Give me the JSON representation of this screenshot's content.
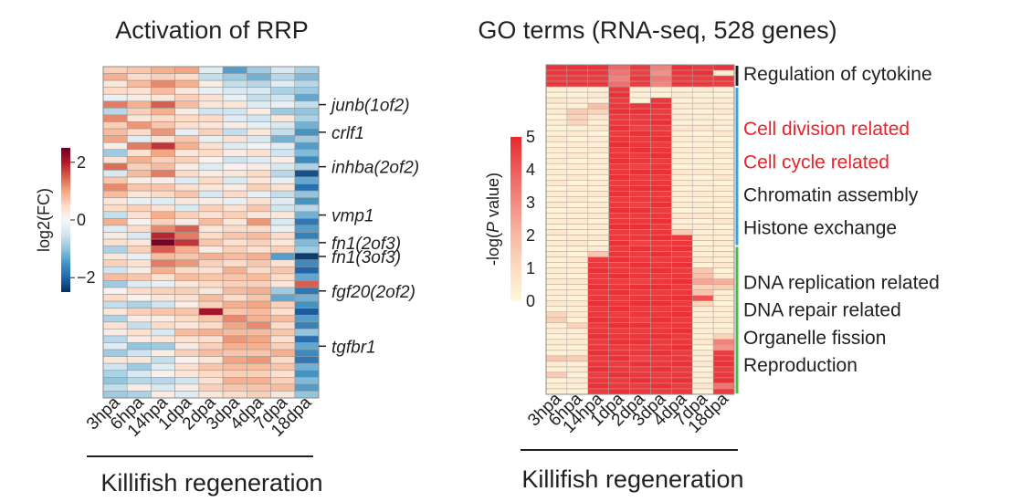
{
  "chart_data": [
    {
      "type": "heatmap",
      "title": "Activation of RRP",
      "xlabel": "Killifish regeneration",
      "columns": [
        "3hpa",
        "6hpa",
        "14hpa",
        "1dpa",
        "2dpa",
        "3dpa",
        "4dpa",
        "7dpa",
        "18dpa"
      ],
      "row_count": 48,
      "gene_labels": [
        {
          "label": "junb(1of2)",
          "row": 5
        },
        {
          "label": "crlf1",
          "row": 9
        },
        {
          "label": "inhba(2of2)",
          "row": 14
        },
        {
          "label": "vmp1",
          "row": 21
        },
        {
          "label": "fn1(2of3)",
          "row": 25
        },
        {
          "label": "fn1(3of3)",
          "row": 27
        },
        {
          "label": "fgf20(2of2)",
          "row": 32
        },
        {
          "label": "tgfbr1",
          "row": 40
        }
      ],
      "colorbar": {
        "label": "log2(FC)",
        "ticks": [
          "2",
          "0",
          "−2"
        ],
        "range": [
          -2.5,
          2.5
        ],
        "colors": [
          "#053061",
          "#2166ac",
          "#4393c3",
          "#92c5de",
          "#d1e5f0",
          "#f7f7f7",
          "#fddbc7",
          "#f4a582",
          "#d6604d",
          "#b2182b",
          "#67001f"
        ]
      },
      "column_profiles": {
        "3hpa": [
          0.6,
          0.9,
          0.3,
          0.5,
          -0.2,
          1.3,
          -0.7,
          1.2,
          0.6,
          0.8,
          1.0,
          0.2,
          -0.9,
          0.4,
          1.4,
          -0.4,
          0.7,
          1.2,
          0.8,
          0.3,
          0.5,
          -0.6,
          0.9,
          -0.3,
          0.2,
          0.4,
          -0.8,
          0.3,
          0.6,
          -0.5,
          0.8,
          -0.9,
          0.1,
          0.5,
          -0.6,
          0.3,
          -0.8,
          0.4,
          0.2,
          -0.7,
          -0.3,
          -0.9,
          0.3,
          -0.5,
          -0.8,
          -1.0,
          -0.6,
          -0.9
        ],
        "6hpa": [
          0.7,
          0.5,
          0.8,
          0.4,
          0.2,
          0.9,
          0.6,
          0.3,
          1.1,
          0.5,
          -0.3,
          1.3,
          0.4,
          0.9,
          0.6,
          0.8,
          0.2,
          0.7,
          0.3,
          -0.2,
          0.6,
          0.4,
          0.1,
          0.5,
          -0.4,
          0.3,
          0.6,
          -0.2,
          0.4,
          0.2,
          0.7,
          -0.3,
          0.5,
          0.1,
          -0.8,
          0.6,
          0.2,
          -0.6,
          0.4,
          0.2,
          -1.0,
          -0.5,
          0.3,
          -0.9,
          -0.4,
          -0.7,
          0.2,
          -0.8
        ],
        "14hpa": [
          0.9,
          0.6,
          1.2,
          0.8,
          0.3,
          1.5,
          0.9,
          0.5,
          0.7,
          1.1,
          0.4,
          1.8,
          1.0,
          0.6,
          0.8,
          1.3,
          0.2,
          0.7,
          0.5,
          -0.3,
          0.4,
          0.9,
          0.6,
          1.2,
          1.9,
          2.4,
          1.5,
          0.8,
          1.3,
          0.9,
          0.4,
          -0.2,
          0.6,
          0.3,
          -0.5,
          0.7,
          0.2,
          0.5,
          -0.4,
          0.3,
          -0.9,
          0.2,
          -0.6,
          -0.3,
          0.1,
          -0.7,
          -0.4,
          0.2
        ],
        "1dpa": [
          1.0,
          0.5,
          0.9,
          0.3,
          0.6,
          0.8,
          0.2,
          0.5,
          0.4,
          -0.2,
          0.7,
          0.9,
          0.3,
          0.6,
          0.2,
          0.5,
          -0.3,
          0.4,
          0.7,
          0.3,
          -0.4,
          0.6,
          0.2,
          1.5,
          1.3,
          1.8,
          0.9,
          0.7,
          1.1,
          0.5,
          0.8,
          0.3,
          0.6,
          0.4,
          0.2,
          0.7,
          0.5,
          0.3,
          0.8,
          0.4,
          0.2,
          0.6,
          0.1,
          0.4,
          0.3,
          -0.5,
          0.2,
          -0.3
        ],
        "2dpa": [
          -0.3,
          -0.6,
          0.2,
          -0.2,
          0.4,
          0.3,
          -0.5,
          0.5,
          0.3,
          0.6,
          -0.2,
          0.4,
          0.5,
          0.1,
          -0.3,
          0.2,
          0.5,
          0.3,
          -0.4,
          0.2,
          0.6,
          0.4,
          0.8,
          0.3,
          0.5,
          0.7,
          0.2,
          0.9,
          0.6,
          0.4,
          0.7,
          0.5,
          0.3,
          0.8,
          0.6,
          2.1,
          0.7,
          0.5,
          0.9,
          0.4,
          0.6,
          0.8,
          0.3,
          0.7,
          0.5,
          0.4,
          0.6,
          0.3
        ],
        "3dpa": [
          -1.4,
          -0.9,
          -0.6,
          -0.4,
          -0.2,
          0.3,
          -0.5,
          -0.3,
          0.2,
          -0.6,
          0.4,
          -0.3,
          0.2,
          -0.5,
          0.1,
          0.3,
          -0.4,
          0.2,
          0.5,
          -0.2,
          0.4,
          0.6,
          0.3,
          0.5,
          0.7,
          0.4,
          0.6,
          0.8,
          0.5,
          0.9,
          0.7,
          0.6,
          0.8,
          0.5,
          0.9,
          0.7,
          1.2,
          1.0,
          0.8,
          1.1,
          0.9,
          0.7,
          1.0,
          0.8,
          0.6,
          0.9,
          0.7,
          0.5
        ],
        "4dpa": [
          -0.9,
          -1.2,
          -0.7,
          -0.4,
          -0.6,
          -0.3,
          0.2,
          -0.5,
          -0.2,
          0.3,
          -0.4,
          -0.1,
          0.4,
          -0.3,
          0.2,
          0.5,
          0.3,
          0.6,
          -0.2,
          0.4,
          0.7,
          0.3,
          1.1,
          0.5,
          0.8,
          0.6,
          0.4,
          0.9,
          0.7,
          0.5,
          0.8,
          0.6,
          0.9,
          0.7,
          1.0,
          0.8,
          0.9,
          1.2,
          0.8,
          1.0,
          0.9,
          0.7,
          1.1,
          0.8,
          0.6,
          0.9,
          0.7,
          0.6
        ],
        "7dpa": [
          -0.4,
          -0.7,
          -0.3,
          -0.8,
          -0.5,
          -0.2,
          -0.9,
          0.3,
          -0.4,
          -0.6,
          -1.2,
          -0.3,
          -0.5,
          0.2,
          -0.4,
          -0.7,
          -0.2,
          0.4,
          -0.6,
          -0.3,
          -0.5,
          0.3,
          -0.4,
          -0.2,
          0.5,
          0.3,
          0.6,
          -1.4,
          0.4,
          0.7,
          0.5,
          0.3,
          -0.9,
          -1.3,
          0.6,
          0.4,
          0.8,
          0.5,
          0.7,
          0.4,
          0.6,
          0.9,
          0.5,
          0.7,
          0.4,
          0.6,
          0.8,
          0.3
        ],
        "18dpa": [
          -0.8,
          -1.1,
          -0.7,
          -0.9,
          -1.3,
          -0.6,
          -1.0,
          -0.8,
          -1.2,
          -1.5,
          -0.9,
          -1.4,
          -1.1,
          -1.6,
          -0.8,
          -2.2,
          -1.3,
          -1.9,
          -1.0,
          -1.5,
          -0.7,
          -1.2,
          -1.8,
          -1.4,
          -1.7,
          -1.1,
          -0.9,
          -2.4,
          -1.6,
          -2.0,
          -1.3,
          1.5,
          -1.8,
          -1.2,
          -1.5,
          -2.1,
          -1.4,
          -1.7,
          -1.0,
          -1.9,
          -1.3,
          -1.6,
          -1.8,
          -1.2,
          -1.5,
          -1.1,
          -1.4,
          -1.0
        ]
      }
    },
    {
      "type": "heatmap",
      "title": "GO terms (RNA-seq, 528 genes)",
      "xlabel": "Killifish regeneration",
      "columns": [
        "3hpa",
        "6hpa",
        "14hpa",
        "1dpa",
        "2dpa",
        "3dpa",
        "4dpa",
        "7dpa",
        "18dpa"
      ],
      "row_count": 60,
      "colorbar": {
        "label": "-log(P value)",
        "ticks": [
          "5",
          "4",
          "3",
          "2",
          "1",
          "0"
        ],
        "range": [
          0,
          5
        ],
        "colors": [
          "#fff7df",
          "#fbdcc2",
          "#f7b9a5",
          "#f28c83",
          "#ee5c5c",
          "#e8282e"
        ]
      },
      "column_profiles": {
        "3hpa": [
          4.8,
          4.7,
          4.6,
          4.7,
          0.3,
          0.2,
          0.6,
          0.3,
          0.5,
          0.2,
          0.4,
          0.2,
          0.3,
          0.6,
          0.2,
          0.4,
          0.3,
          0.5,
          0.2,
          0.4,
          0.3,
          0.6,
          0.2,
          0.4,
          0.3,
          0.5,
          0.2,
          0.3,
          0.4,
          0.2,
          0.6,
          0.3,
          0.4,
          0.2,
          0.5,
          0.3,
          0.2,
          0.4,
          0.3,
          0.5,
          0.2,
          0.4,
          0.3,
          0.6,
          0.2,
          1.2,
          1.4,
          0.3,
          0.4,
          0.2,
          0.5,
          0.3,
          0.2,
          1.6,
          0.4,
          0.3,
          1.5,
          0.2,
          0.4,
          0.3
        ],
        "6hpa": [
          4.8,
          4.7,
          4.6,
          4.7,
          0.3,
          0.2,
          0.4,
          0.3,
          1.5,
          1.3,
          1.2,
          0.3,
          0.5,
          0.2,
          0.4,
          0.3,
          0.6,
          0.2,
          0.4,
          0.3,
          0.5,
          0.2,
          0.4,
          0.3,
          0.6,
          0.2,
          0.4,
          0.3,
          0.5,
          0.2,
          0.3,
          0.4,
          0.6,
          0.3,
          0.2,
          0.5,
          0.3,
          0.4,
          0.2,
          0.6,
          0.3,
          0.4,
          0.2,
          0.5,
          0.3,
          0.4,
          0.2,
          1.3,
          0.4,
          0.3,
          0.5,
          0.2,
          0.4,
          1.4,
          0.3,
          0.5,
          0.2,
          0.4,
          0.3,
          0.2
        ],
        "14hpa": [
          4.8,
          4.7,
          4.6,
          4.7,
          0.3,
          0.4,
          0.2,
          1.8,
          1.2,
          0.6,
          0.3,
          0.5,
          0.2,
          0.4,
          0.3,
          0.6,
          0.2,
          0.4,
          0.3,
          0.5,
          0.2,
          0.4,
          0.3,
          0.6,
          0.2,
          0.4,
          0.3,
          0.5,
          0.2,
          0.4,
          0.3,
          0.6,
          0.2,
          0.4,
          1.6,
          4.6,
          4.7,
          4.8,
          4.6,
          4.7,
          4.8,
          4.6,
          4.7,
          4.8,
          4.6,
          4.7,
          4.8,
          4.6,
          4.7,
          4.8,
          4.6,
          4.7,
          4.8,
          4.6,
          4.7,
          4.8,
          4.6,
          4.7,
          4.8,
          4.6
        ],
        "1dpa": [
          3.8,
          3.5,
          3.2,
          3.6,
          4.7,
          4.8,
          4.6,
          4.7,
          4.8,
          4.6,
          4.7,
          4.8,
          4.6,
          4.7,
          4.8,
          4.6,
          4.7,
          4.8,
          4.6,
          4.7,
          4.8,
          4.6,
          4.7,
          4.8,
          4.6,
          4.7,
          4.8,
          4.6,
          4.7,
          4.8,
          4.6,
          4.7,
          4.8,
          4.6,
          4.7,
          4.8,
          4.6,
          4.7,
          4.8,
          4.6,
          4.7,
          4.8,
          4.6,
          4.7,
          4.8,
          4.6,
          4.7,
          4.8,
          4.6,
          4.7,
          4.8,
          4.6,
          4.7,
          4.8,
          4.6,
          4.7,
          4.8,
          4.6,
          4.7,
          4.8
        ],
        "2dpa": [
          4.6,
          4.5,
          4.7,
          4.6,
          0.4,
          0.3,
          0.2,
          4.7,
          4.8,
          4.6,
          4.7,
          4.5,
          4.8,
          4.6,
          4.7,
          4.8,
          4.6,
          4.7,
          4.5,
          4.8,
          4.6,
          4.7,
          4.8,
          4.6,
          4.7,
          4.5,
          4.8,
          4.6,
          4.7,
          4.8,
          4.6,
          4.7,
          4.5,
          4.8,
          4.6,
          4.7,
          4.8,
          4.6,
          4.7,
          4.5,
          4.8,
          4.6,
          4.7,
          4.8,
          4.6,
          4.7,
          4.5,
          4.8,
          4.6,
          4.7,
          4.8,
          4.6,
          4.7,
          4.5,
          4.8,
          4.6,
          4.7,
          4.8,
          4.6,
          4.7
        ],
        "3dpa": [
          3.2,
          2.9,
          3.4,
          3.1,
          0.3,
          0.2,
          4.7,
          4.8,
          4.6,
          4.7,
          4.8,
          4.6,
          4.7,
          4.8,
          4.6,
          4.7,
          4.8,
          4.6,
          4.7,
          4.8,
          4.6,
          4.7,
          4.8,
          4.6,
          4.7,
          4.8,
          4.6,
          4.7,
          4.8,
          4.6,
          4.7,
          4.8,
          4.6,
          4.7,
          4.8,
          4.6,
          4.7,
          4.8,
          4.6,
          4.7,
          4.8,
          4.6,
          4.7,
          4.8,
          4.6,
          4.7,
          4.8,
          4.6,
          4.7,
          4.8,
          4.6,
          4.7,
          4.8,
          4.6,
          4.7,
          4.8,
          4.6,
          4.7,
          4.8,
          4.6
        ],
        "4dpa": [
          4.8,
          4.7,
          4.6,
          4.7,
          0.3,
          0.4,
          0.2,
          0.5,
          0.3,
          0.4,
          0.2,
          0.6,
          0.3,
          0.4,
          0.2,
          0.5,
          0.3,
          0.4,
          0.2,
          0.6,
          0.3,
          0.4,
          0.2,
          0.5,
          0.3,
          0.4,
          0.2,
          0.6,
          0.3,
          0.4,
          1.4,
          4.6,
          4.7,
          4.8,
          4.6,
          4.7,
          4.8,
          4.6,
          4.7,
          4.8,
          4.6,
          4.7,
          4.8,
          4.6,
          4.7,
          4.8,
          4.6,
          4.7,
          4.8,
          4.6,
          4.7,
          4.8,
          4.6,
          4.7,
          4.8,
          4.6,
          4.7,
          4.8,
          4.6,
          4.7
        ],
        "7dpa": [
          4.7,
          4.8,
          4.6,
          4.7,
          0.4,
          0.2,
          0.3,
          0.5,
          0.2,
          0.4,
          0.3,
          0.6,
          0.2,
          0.4,
          0.3,
          0.5,
          0.2,
          0.4,
          0.3,
          0.6,
          0.2,
          0.4,
          0.3,
          0.5,
          0.2,
          0.4,
          0.3,
          0.6,
          0.2,
          0.4,
          0.3,
          0.5,
          0.2,
          0.4,
          0.3,
          0.6,
          0.2,
          1.6,
          1.8,
          2.4,
          1.3,
          1.7,
          4.2,
          1.2,
          0.4,
          0.3,
          0.5,
          0.2,
          0.4,
          0.3,
          0.6,
          0.2,
          0.4,
          0.3,
          0.5,
          0.2,
          0.4,
          0.3,
          0.6,
          0.2
        ],
        "18dpa": [
          4.8,
          0.4,
          4.7,
          4.6,
          0.3,
          0.2,
          0.4,
          0.3,
          0.5,
          0.2,
          0.4,
          0.3,
          0.6,
          0.2,
          0.4,
          0.3,
          0.5,
          0.2,
          0.4,
          0.3,
          0.6,
          0.2,
          0.4,
          0.3,
          0.5,
          0.2,
          0.4,
          0.3,
          0.6,
          0.2,
          0.4,
          0.3,
          0.5,
          0.2,
          0.4,
          0.3,
          0.6,
          0.2,
          0.4,
          2.2,
          1.4,
          0.3,
          0.5,
          0.2,
          0.4,
          0.3,
          0.6,
          0.2,
          0.4,
          1.3,
          3.2,
          2.8,
          4.6,
          4.7,
          4.8,
          4.6,
          4.7,
          4.8,
          3.5,
          4.6
        ]
      },
      "term_labels": [
        {
          "label": "Regulation of cytokine",
          "color": "#231f20",
          "row": 1
        },
        {
          "label": "Cell division related",
          "color": "#e8232a",
          "row": 11
        },
        {
          "label": "Cell cycle related",
          "color": "#e8232a",
          "row": 17
        },
        {
          "label": "Chromatin assembly",
          "color": "#231f20",
          "row": 23
        },
        {
          "label": "Histone exchange",
          "color": "#231f20",
          "row": 29
        },
        {
          "label": "DNA replication related",
          "color": "#231f20",
          "row": 39
        },
        {
          "label": "DNA repair related",
          "color": "#231f20",
          "row": 44
        },
        {
          "label": "Organelle fission",
          "color": "#231f20",
          "row": 49
        },
        {
          "label": "Reproduction",
          "color": "#231f20",
          "row": 54
        }
      ],
      "bracket_colors": [
        "#231f20",
        "#3aa3dc",
        "#4fb848"
      ]
    }
  ]
}
